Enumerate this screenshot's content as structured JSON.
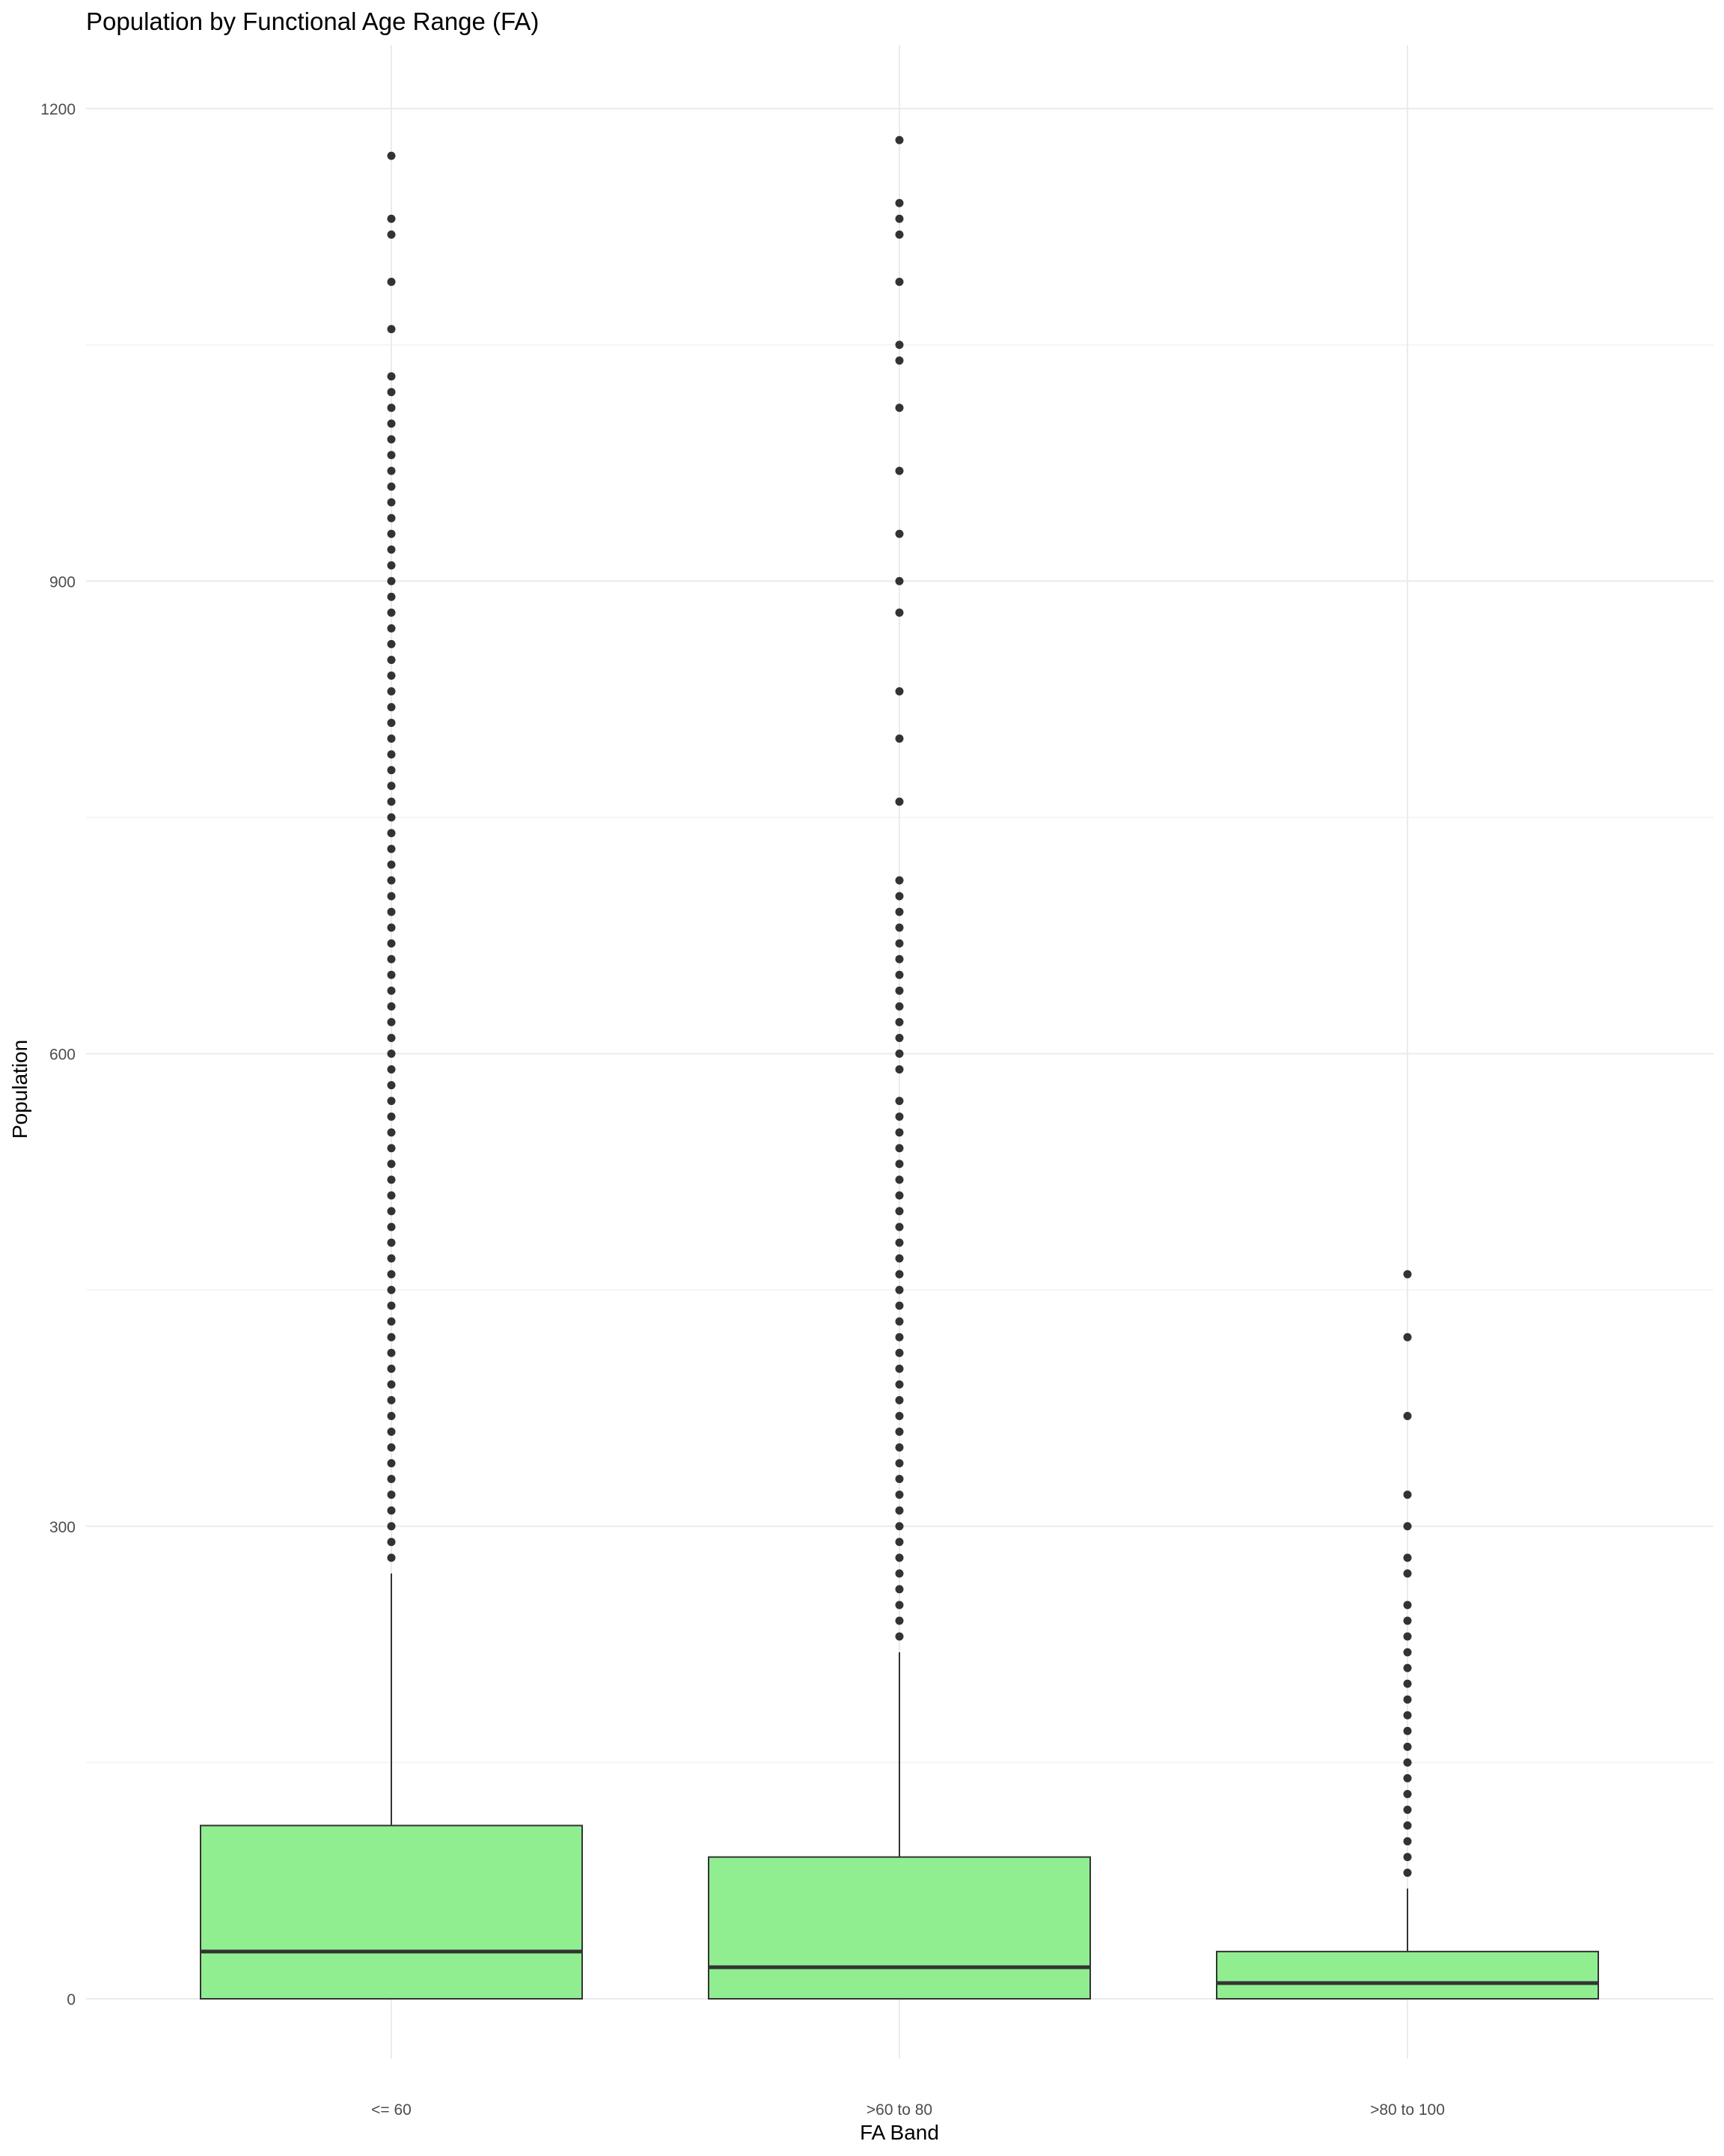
{
  "chart_data": {
    "type": "box",
    "title": "Population by Functional Age Range (FA)",
    "xlabel": "FA Band",
    "ylabel": "Population",
    "categories": [
      "<= 60",
      ">60 to 80",
      ">80 to 100"
    ],
    "ylim": [
      -40,
      1235
    ],
    "yticks": [
      0,
      300,
      600,
      900,
      1200
    ],
    "grid": true,
    "legend": "none",
    "colors": {
      "box_fill": "#90EE90",
      "box_stroke": "#333333",
      "outlier": "#333333",
      "grid": "#ebebeb",
      "background": "#ffffff"
    },
    "boxes": [
      {
        "category": "<= 60",
        "lower_whisker": 0,
        "q1": 0,
        "median": 30,
        "q3": 110,
        "upper_whisker": 270,
        "outliers": [
          280,
          290,
          300,
          310,
          320,
          330,
          340,
          350,
          360,
          370,
          380,
          390,
          400,
          410,
          420,
          430,
          440,
          450,
          460,
          470,
          480,
          490,
          500,
          510,
          520,
          530,
          540,
          550,
          560,
          570,
          580,
          590,
          600,
          610,
          620,
          630,
          640,
          650,
          660,
          670,
          680,
          690,
          700,
          710,
          720,
          730,
          740,
          750,
          760,
          770,
          780,
          790,
          800,
          810,
          820,
          830,
          840,
          850,
          860,
          870,
          880,
          890,
          900,
          910,
          920,
          930,
          940,
          950,
          960,
          970,
          980,
          990,
          1000,
          1010,
          1020,
          1030,
          1060,
          1090,
          1120,
          1130,
          1170
        ]
      },
      {
        "category": ">60 to 80",
        "lower_whisker": 0,
        "q1": 0,
        "median": 20,
        "q3": 90,
        "upper_whisker": 220,
        "outliers": [
          230,
          240,
          250,
          260,
          270,
          280,
          290,
          300,
          310,
          320,
          330,
          340,
          350,
          360,
          370,
          380,
          390,
          400,
          410,
          420,
          430,
          440,
          450,
          460,
          470,
          480,
          490,
          500,
          510,
          520,
          530,
          540,
          550,
          560,
          570,
          590,
          600,
          610,
          620,
          630,
          640,
          650,
          660,
          670,
          680,
          690,
          700,
          710,
          760,
          800,
          830,
          880,
          900,
          930,
          970,
          1010,
          1040,
          1050,
          1090,
          1120,
          1130,
          1140,
          1180
        ]
      },
      {
        "category": ">80 to 100",
        "lower_whisker": 0,
        "q1": 0,
        "median": 10,
        "q3": 30,
        "upper_whisker": 70,
        "outliers": [
          80,
          90,
          100,
          110,
          120,
          130,
          140,
          150,
          160,
          170,
          180,
          190,
          200,
          210,
          220,
          230,
          240,
          250,
          270,
          280,
          300,
          320,
          370,
          420,
          460
        ]
      }
    ]
  }
}
